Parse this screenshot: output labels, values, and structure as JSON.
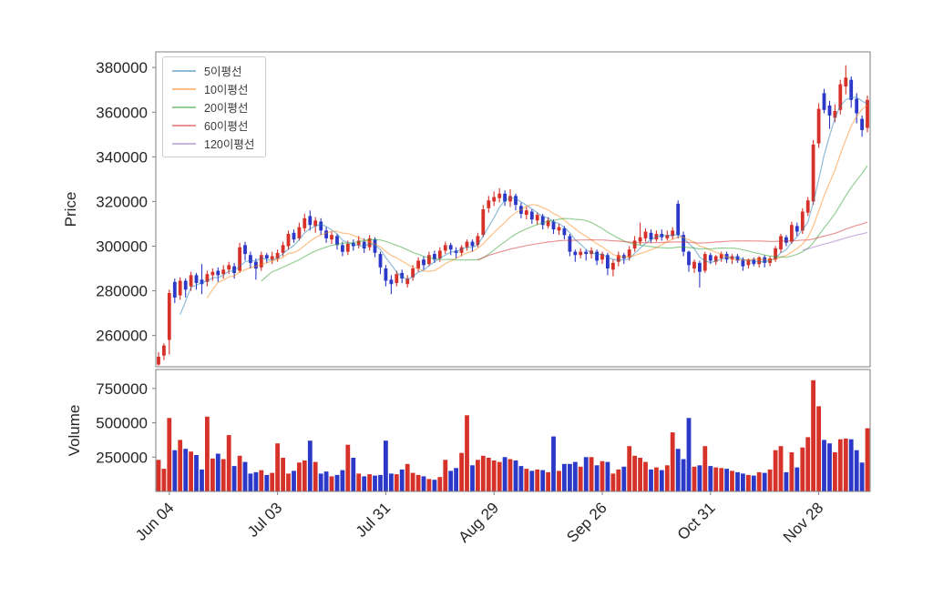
{
  "chart_data": {
    "type": "candlestick+volume",
    "legend_position": "upper-left",
    "grid": false,
    "price_axis": {
      "label": "Price",
      "min": 246000,
      "max": 387000,
      "ticks": [
        260000,
        280000,
        300000,
        320000,
        340000,
        360000,
        380000
      ]
    },
    "volume_axis": {
      "label": "Volume",
      "min": 0,
      "max": 888000,
      "ticks": [
        250000,
        500000,
        750000
      ]
    },
    "x_ticks": [
      {
        "index": 2,
        "label": "Jun 04"
      },
      {
        "index": 22,
        "label": "Jul 03"
      },
      {
        "index": 42,
        "label": "Jul 31"
      },
      {
        "index": 62,
        "label": "Aug 29"
      },
      {
        "index": 82,
        "label": "Sep 26"
      },
      {
        "index": 102,
        "label": "Oct 31"
      },
      {
        "index": 122,
        "label": "Nov 28"
      }
    ],
    "series": [
      {
        "name": "5이평선",
        "window": 5,
        "color": "#1f77b4"
      },
      {
        "name": "10이평선",
        "window": 10,
        "color": "#ff7f0e"
      },
      {
        "name": "20이평선",
        "window": 20,
        "color": "#2ca02c"
      },
      {
        "name": "60이평선",
        "window": 60,
        "color": "#d62728"
      },
      {
        "name": "120이평선",
        "window": 120,
        "color": "#9467bd"
      }
    ],
    "colors": {
      "up": "#d73229",
      "down": "#2b38c8",
      "spine": "#7f7f7f",
      "text": "#262626"
    },
    "candles_format": [
      "open",
      "high",
      "low",
      "close",
      "volume"
    ],
    "candles": [
      [
        247000,
        252500,
        246500,
        250500,
        230000
      ],
      [
        251000,
        256500,
        249000,
        255500,
        165000
      ],
      [
        258000,
        280500,
        251500,
        279000,
        535000
      ],
      [
        284000,
        285500,
        274500,
        277000,
        300000
      ],
      [
        278000,
        286000,
        276000,
        284500,
        375000
      ],
      [
        284500,
        285500,
        277000,
        280500,
        310000
      ],
      [
        282000,
        288500,
        280000,
        287000,
        290000
      ],
      [
        287000,
        288000,
        280500,
        283500,
        265000
      ],
      [
        285000,
        292000,
        278500,
        283000,
        160000
      ],
      [
        284000,
        289000,
        282000,
        287500,
        545000
      ],
      [
        287000,
        290000,
        284500,
        288500,
        240000
      ],
      [
        289000,
        290500,
        284000,
        287000,
        275000
      ],
      [
        287500,
        291500,
        285500,
        289500,
        235000
      ],
      [
        289500,
        293000,
        287500,
        291500,
        410000
      ],
      [
        291000,
        292500,
        285500,
        288000,
        185000
      ],
      [
        289000,
        301500,
        288000,
        299500,
        260000
      ],
      [
        300500,
        302000,
        293500,
        296500,
        215000
      ],
      [
        296000,
        297500,
        290000,
        292500,
        130000
      ],
      [
        293000,
        294500,
        285000,
        290000,
        140000
      ],
      [
        290500,
        297500,
        289000,
        296000,
        155000
      ],
      [
        296000,
        297000,
        292500,
        294500,
        120000
      ],
      [
        294000,
        297500,
        292000,
        295500,
        135000
      ],
      [
        294500,
        298500,
        293000,
        297000,
        350000
      ],
      [
        297000,
        302000,
        295500,
        300500,
        245000
      ],
      [
        300000,
        307000,
        298500,
        305500,
        130000
      ],
      [
        306000,
        307500,
        301500,
        303000,
        150000
      ],
      [
        303500,
        310500,
        302500,
        308500,
        210000
      ],
      [
        308000,
        314500,
        306500,
        312500,
        225000
      ],
      [
        313500,
        316000,
        307000,
        309500,
        370000
      ],
      [
        309000,
        313000,
        306000,
        311500,
        215000
      ],
      [
        311000,
        312500,
        305000,
        307000,
        130000
      ],
      [
        307000,
        308500,
        301500,
        303500,
        145000
      ],
      [
        303000,
        306500,
        301000,
        305000,
        110000
      ],
      [
        304500,
        305500,
        298500,
        300500,
        120000
      ],
      [
        300500,
        302000,
        295500,
        297500,
        155000
      ],
      [
        297500,
        302500,
        296000,
        301000,
        340000
      ],
      [
        301500,
        303000,
        298000,
        300000,
        245000
      ],
      [
        300500,
        304500,
        299000,
        302500,
        130000
      ],
      [
        302000,
        303500,
        297000,
        299000,
        110000
      ],
      [
        299500,
        305000,
        298000,
        303500,
        125000
      ],
      [
        303000,
        304000,
        295000,
        297000,
        115000
      ],
      [
        296500,
        297500,
        287500,
        290500,
        120000
      ],
      [
        290000,
        291500,
        282000,
        284500,
        370000
      ],
      [
        285000,
        287000,
        278500,
        283000,
        130000
      ],
      [
        283500,
        289000,
        282000,
        287500,
        125000
      ],
      [
        288000,
        289500,
        283500,
        285500,
        160000
      ],
      [
        283000,
        287000,
        281500,
        285500,
        200000
      ],
      [
        286000,
        291500,
        284500,
        290000,
        135000
      ],
      [
        290000,
        295000,
        288500,
        293500,
        120000
      ],
      [
        294000,
        295500,
        289500,
        291500,
        110000
      ],
      [
        292000,
        297500,
        291000,
        296000,
        90000
      ],
      [
        296500,
        298000,
        292500,
        294000,
        85000
      ],
      [
        294500,
        299500,
        293000,
        298000,
        105000
      ],
      [
        298000,
        302000,
        296500,
        300500,
        230000
      ],
      [
        300500,
        301500,
        296000,
        298500,
        150000
      ],
      [
        298000,
        299500,
        294500,
        297000,
        170000
      ],
      [
        297000,
        300500,
        295500,
        299500,
        280000
      ],
      [
        299500,
        303000,
        298000,
        302000,
        555000
      ],
      [
        302000,
        303000,
        297500,
        300000,
        190000
      ],
      [
        300500,
        306000,
        299500,
        304500,
        230000
      ],
      [
        305000,
        318500,
        304000,
        316500,
        260000
      ],
      [
        317000,
        322500,
        315000,
        320500,
        245000
      ],
      [
        320000,
        324500,
        318000,
        322000,
        225000
      ],
      [
        321500,
        326000,
        319500,
        323500,
        215000
      ],
      [
        323500,
        325000,
        318000,
        320000,
        250000
      ],
      [
        320000,
        325500,
        317500,
        322500,
        235000
      ],
      [
        322500,
        323500,
        316000,
        318500,
        225000
      ],
      [
        318000,
        319500,
        312500,
        314500,
        185000
      ],
      [
        314000,
        317500,
        312000,
        316000,
        165000
      ],
      [
        315500,
        316500,
        310000,
        312000,
        150000
      ],
      [
        311500,
        315000,
        309500,
        314000,
        160000
      ],
      [
        313500,
        314500,
        307500,
        309500,
        155000
      ],
      [
        309000,
        313000,
        308000,
        311500,
        140000
      ],
      [
        311000,
        312000,
        305500,
        307500,
        400000
      ],
      [
        307000,
        310000,
        305000,
        308500,
        150000
      ],
      [
        308000,
        309000,
        303000,
        305000,
        200000
      ],
      [
        304500,
        305500,
        295500,
        297500,
        200000
      ],
      [
        297500,
        298500,
        293000,
        296000,
        215000
      ],
      [
        296000,
        299000,
        294500,
        297500,
        180000
      ],
      [
        297500,
        298500,
        293500,
        296500,
        250000
      ],
      [
        296500,
        299500,
        294500,
        298000,
        250000
      ],
      [
        297500,
        298500,
        291500,
        293500,
        190000
      ],
      [
        294000,
        297500,
        292000,
        296500,
        220000
      ],
      [
        296000,
        297000,
        287000,
        290000,
        215000
      ],
      [
        289500,
        294000,
        286500,
        292500,
        130000
      ],
      [
        293000,
        297500,
        291000,
        296000,
        160000
      ],
      [
        296000,
        297000,
        292000,
        294500,
        180000
      ],
      [
        295000,
        300000,
        293500,
        298500,
        330000
      ],
      [
        299000,
        304500,
        297500,
        302500,
        260000
      ],
      [
        302000,
        310500,
        300500,
        304000,
        245000
      ],
      [
        303500,
        308000,
        302000,
        306500,
        215000
      ],
      [
        306000,
        307500,
        301500,
        303000,
        160000
      ],
      [
        303000,
        307000,
        302000,
        305500,
        175000
      ],
      [
        305500,
        307500,
        302500,
        304000,
        155000
      ],
      [
        303500,
        307000,
        302500,
        305000,
        190000
      ],
      [
        304500,
        308500,
        303000,
        307000,
        430000
      ],
      [
        319000,
        320500,
        303500,
        305000,
        310000
      ],
      [
        305000,
        306500,
        295500,
        297500,
        235000
      ],
      [
        297500,
        298000,
        288500,
        291500,
        535000
      ],
      [
        290000,
        294000,
        288000,
        293000,
        180000
      ],
      [
        292500,
        293500,
        281500,
        288500,
        190000
      ],
      [
        289000,
        297500,
        288000,
        296500,
        330000
      ],
      [
        296000,
        297000,
        292000,
        293500,
        185000
      ],
      [
        293000,
        296000,
        291500,
        295500,
        175000
      ],
      [
        294500,
        297500,
        293000,
        296500,
        170000
      ],
      [
        296500,
        297500,
        292500,
        294000,
        165000
      ],
      [
        294000,
        296500,
        292000,
        295500,
        150000
      ],
      [
        295500,
        296500,
        292500,
        293500,
        140000
      ],
      [
        294000,
        295000,
        289000,
        291000,
        130000
      ],
      [
        291500,
        294500,
        290000,
        294000,
        120000
      ],
      [
        294000,
        295000,
        291000,
        292000,
        115000
      ],
      [
        292000,
        295500,
        290500,
        295000,
        140000
      ],
      [
        295000,
        296000,
        290500,
        292500,
        135000
      ],
      [
        292500,
        295500,
        291000,
        294500,
        160000
      ],
      [
        294000,
        300000,
        293000,
        299000,
        300000
      ],
      [
        298500,
        305500,
        297000,
        304500,
        330000
      ],
      [
        304000,
        305000,
        300000,
        301500,
        140000
      ],
      [
        302000,
        311000,
        301000,
        309500,
        285000
      ],
      [
        309000,
        310500,
        304500,
        306500,
        175000
      ],
      [
        307000,
        317000,
        305500,
        315500,
        320000
      ],
      [
        315000,
        322000,
        313500,
        320500,
        395000
      ],
      [
        320000,
        347500,
        318500,
        345500,
        810000
      ],
      [
        346000,
        364000,
        344000,
        361500,
        620000
      ],
      [
        368500,
        370500,
        359500,
        361000,
        375000
      ],
      [
        363000,
        365000,
        352500,
        358500,
        350000
      ],
      [
        357500,
        363500,
        355500,
        360500,
        285000
      ],
      [
        361000,
        374500,
        359000,
        372500,
        380000
      ],
      [
        371500,
        381000,
        368000,
        375500,
        385000
      ],
      [
        374500,
        376000,
        362000,
        365500,
        380000
      ],
      [
        366000,
        368500,
        355000,
        359500,
        300000
      ],
      [
        357000,
        358500,
        349000,
        352000,
        210000
      ],
      [
        353000,
        367500,
        351000,
        365500,
        460000
      ]
    ]
  }
}
